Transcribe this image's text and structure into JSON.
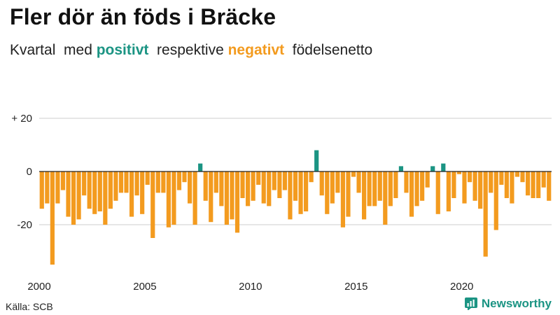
{
  "header": {
    "title": "Fler dör än föds i Bräcke",
    "subtitle_pre": "Kvartal  med ",
    "subtitle_pos": "positivt",
    "subtitle_mid": "  respektive ",
    "subtitle_neg": "negativt",
    "subtitle_post": "  födelsenetto"
  },
  "footer": {
    "source": "Källa: SCB",
    "brand": "Newsworthy"
  },
  "colors": {
    "positive": "#1b9483",
    "negative": "#f39b1f",
    "axis": "#222222",
    "grid": "#cccccc"
  },
  "chart_data": {
    "type": "bar",
    "title": "Fler dör än föds i Bräcke",
    "subtitle": "Kvartal med positivt respektive negativt födelsenetto",
    "xlabel": "",
    "ylabel": "",
    "start_year": 2000,
    "periods_per_year": 4,
    "ylim": [
      -36,
      22
    ],
    "yticks": [
      {
        "value": 20,
        "label": "+ 20"
      },
      {
        "value": 0,
        "label": "0"
      },
      {
        "value": -20,
        "label": "-20"
      }
    ],
    "xticks": [
      {
        "year": 2000,
        "label": "2000"
      },
      {
        "year": 2005,
        "label": "2005"
      },
      {
        "year": 2010,
        "label": "2010"
      },
      {
        "year": 2015,
        "label": "2015"
      },
      {
        "year": 2020,
        "label": "2020"
      }
    ],
    "grid": true,
    "values": [
      -14,
      -12,
      -35,
      -12,
      -7,
      -17,
      -20,
      -18,
      -9,
      -14,
      -16,
      -15,
      -20,
      -14,
      -11,
      -8,
      -8,
      -17,
      -9,
      -16,
      -5,
      -25,
      -8,
      -8,
      -21,
      -20,
      -7,
      -4,
      -12,
      -20,
      3,
      -11,
      -19,
      -8,
      -13,
      -20,
      -18,
      -23,
      -10,
      -13,
      -11,
      -5,
      -12,
      -13,
      -7,
      -10,
      -7,
      -18,
      -11,
      -16,
      -15,
      -4,
      8,
      -9,
      -16,
      -12,
      -8,
      -21,
      -17,
      -2,
      -8,
      -18,
      -13,
      -13,
      -11,
      -20,
      -13,
      -10,
      2,
      -8,
      -17,
      -13,
      -11,
      -6,
      2,
      -16,
      3,
      -15,
      -10,
      -1,
      -12,
      -4,
      -11,
      -14,
      -32,
      -8,
      -22,
      -5,
      -10,
      -12,
      -2,
      -4,
      -9,
      -10,
      -10,
      -6,
      -11
    ]
  }
}
